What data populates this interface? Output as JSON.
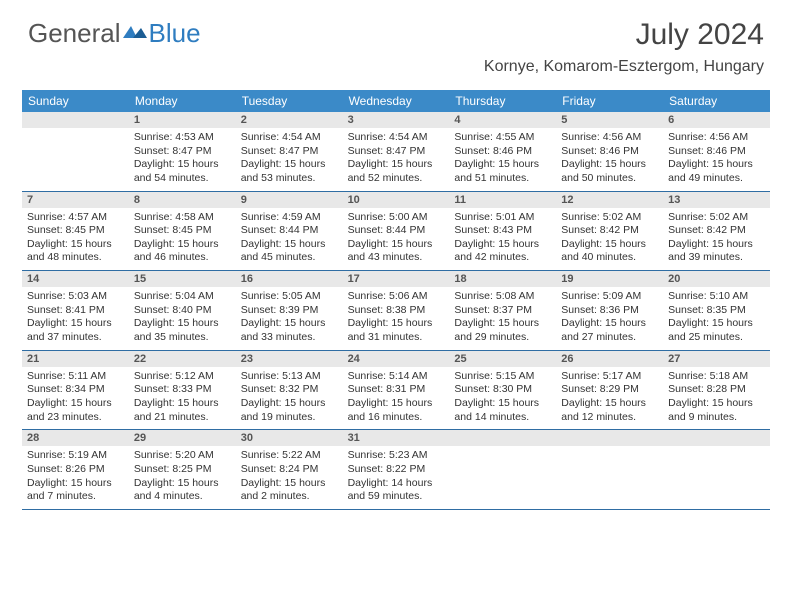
{
  "brand": {
    "part1": "General",
    "part2": "Blue"
  },
  "title": "July 2024",
  "location": "Kornye, Komarom-Esztergom, Hungary",
  "colors": {
    "header_bg": "#3b8ac8",
    "header_text": "#ffffff",
    "daynum_bg": "#e8e8e8",
    "separator": "#2f6da3",
    "brand_blue": "#2f7dc0",
    "text": "#333333"
  },
  "day_labels": [
    "Sunday",
    "Monday",
    "Tuesday",
    "Wednesday",
    "Thursday",
    "Friday",
    "Saturday"
  ],
  "weeks": [
    [
      {
        "n": "",
        "sunrise": "",
        "sunset": "",
        "daylight": ""
      },
      {
        "n": "1",
        "sunrise": "Sunrise: 4:53 AM",
        "sunset": "Sunset: 8:47 PM",
        "daylight": "Daylight: 15 hours and 54 minutes."
      },
      {
        "n": "2",
        "sunrise": "Sunrise: 4:54 AM",
        "sunset": "Sunset: 8:47 PM",
        "daylight": "Daylight: 15 hours and 53 minutes."
      },
      {
        "n": "3",
        "sunrise": "Sunrise: 4:54 AM",
        "sunset": "Sunset: 8:47 PM",
        "daylight": "Daylight: 15 hours and 52 minutes."
      },
      {
        "n": "4",
        "sunrise": "Sunrise: 4:55 AM",
        "sunset": "Sunset: 8:46 PM",
        "daylight": "Daylight: 15 hours and 51 minutes."
      },
      {
        "n": "5",
        "sunrise": "Sunrise: 4:56 AM",
        "sunset": "Sunset: 8:46 PM",
        "daylight": "Daylight: 15 hours and 50 minutes."
      },
      {
        "n": "6",
        "sunrise": "Sunrise: 4:56 AM",
        "sunset": "Sunset: 8:46 PM",
        "daylight": "Daylight: 15 hours and 49 minutes."
      }
    ],
    [
      {
        "n": "7",
        "sunrise": "Sunrise: 4:57 AM",
        "sunset": "Sunset: 8:45 PM",
        "daylight": "Daylight: 15 hours and 48 minutes."
      },
      {
        "n": "8",
        "sunrise": "Sunrise: 4:58 AM",
        "sunset": "Sunset: 8:45 PM",
        "daylight": "Daylight: 15 hours and 46 minutes."
      },
      {
        "n": "9",
        "sunrise": "Sunrise: 4:59 AM",
        "sunset": "Sunset: 8:44 PM",
        "daylight": "Daylight: 15 hours and 45 minutes."
      },
      {
        "n": "10",
        "sunrise": "Sunrise: 5:00 AM",
        "sunset": "Sunset: 8:44 PM",
        "daylight": "Daylight: 15 hours and 43 minutes."
      },
      {
        "n": "11",
        "sunrise": "Sunrise: 5:01 AM",
        "sunset": "Sunset: 8:43 PM",
        "daylight": "Daylight: 15 hours and 42 minutes."
      },
      {
        "n": "12",
        "sunrise": "Sunrise: 5:02 AM",
        "sunset": "Sunset: 8:42 PM",
        "daylight": "Daylight: 15 hours and 40 minutes."
      },
      {
        "n": "13",
        "sunrise": "Sunrise: 5:02 AM",
        "sunset": "Sunset: 8:42 PM",
        "daylight": "Daylight: 15 hours and 39 minutes."
      }
    ],
    [
      {
        "n": "14",
        "sunrise": "Sunrise: 5:03 AM",
        "sunset": "Sunset: 8:41 PM",
        "daylight": "Daylight: 15 hours and 37 minutes."
      },
      {
        "n": "15",
        "sunrise": "Sunrise: 5:04 AM",
        "sunset": "Sunset: 8:40 PM",
        "daylight": "Daylight: 15 hours and 35 minutes."
      },
      {
        "n": "16",
        "sunrise": "Sunrise: 5:05 AM",
        "sunset": "Sunset: 8:39 PM",
        "daylight": "Daylight: 15 hours and 33 minutes."
      },
      {
        "n": "17",
        "sunrise": "Sunrise: 5:06 AM",
        "sunset": "Sunset: 8:38 PM",
        "daylight": "Daylight: 15 hours and 31 minutes."
      },
      {
        "n": "18",
        "sunrise": "Sunrise: 5:08 AM",
        "sunset": "Sunset: 8:37 PM",
        "daylight": "Daylight: 15 hours and 29 minutes."
      },
      {
        "n": "19",
        "sunrise": "Sunrise: 5:09 AM",
        "sunset": "Sunset: 8:36 PM",
        "daylight": "Daylight: 15 hours and 27 minutes."
      },
      {
        "n": "20",
        "sunrise": "Sunrise: 5:10 AM",
        "sunset": "Sunset: 8:35 PM",
        "daylight": "Daylight: 15 hours and 25 minutes."
      }
    ],
    [
      {
        "n": "21",
        "sunrise": "Sunrise: 5:11 AM",
        "sunset": "Sunset: 8:34 PM",
        "daylight": "Daylight: 15 hours and 23 minutes."
      },
      {
        "n": "22",
        "sunrise": "Sunrise: 5:12 AM",
        "sunset": "Sunset: 8:33 PM",
        "daylight": "Daylight: 15 hours and 21 minutes."
      },
      {
        "n": "23",
        "sunrise": "Sunrise: 5:13 AM",
        "sunset": "Sunset: 8:32 PM",
        "daylight": "Daylight: 15 hours and 19 minutes."
      },
      {
        "n": "24",
        "sunrise": "Sunrise: 5:14 AM",
        "sunset": "Sunset: 8:31 PM",
        "daylight": "Daylight: 15 hours and 16 minutes."
      },
      {
        "n": "25",
        "sunrise": "Sunrise: 5:15 AM",
        "sunset": "Sunset: 8:30 PM",
        "daylight": "Daylight: 15 hours and 14 minutes."
      },
      {
        "n": "26",
        "sunrise": "Sunrise: 5:17 AM",
        "sunset": "Sunset: 8:29 PM",
        "daylight": "Daylight: 15 hours and 12 minutes."
      },
      {
        "n": "27",
        "sunrise": "Sunrise: 5:18 AM",
        "sunset": "Sunset: 8:28 PM",
        "daylight": "Daylight: 15 hours and 9 minutes."
      }
    ],
    [
      {
        "n": "28",
        "sunrise": "Sunrise: 5:19 AM",
        "sunset": "Sunset: 8:26 PM",
        "daylight": "Daylight: 15 hours and 7 minutes."
      },
      {
        "n": "29",
        "sunrise": "Sunrise: 5:20 AM",
        "sunset": "Sunset: 8:25 PM",
        "daylight": "Daylight: 15 hours and 4 minutes."
      },
      {
        "n": "30",
        "sunrise": "Sunrise: 5:22 AM",
        "sunset": "Sunset: 8:24 PM",
        "daylight": "Daylight: 15 hours and 2 minutes."
      },
      {
        "n": "31",
        "sunrise": "Sunrise: 5:23 AM",
        "sunset": "Sunset: 8:22 PM",
        "daylight": "Daylight: 14 hours and 59 minutes."
      },
      {
        "n": "",
        "sunrise": "",
        "sunset": "",
        "daylight": ""
      },
      {
        "n": "",
        "sunrise": "",
        "sunset": "",
        "daylight": ""
      },
      {
        "n": "",
        "sunrise": "",
        "sunset": "",
        "daylight": ""
      }
    ]
  ]
}
